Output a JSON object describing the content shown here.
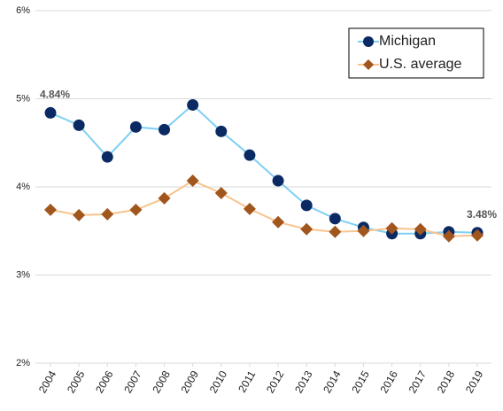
{
  "chart_data": {
    "type": "line",
    "categories": [
      "2004",
      "2005",
      "2006",
      "2007",
      "2008",
      "2009",
      "2010",
      "2011",
      "2012",
      "2013",
      "2014",
      "2015",
      "2016",
      "2017",
      "2018",
      "2019"
    ],
    "series": [
      {
        "name": "Michigan",
        "color": "#0b2a63",
        "line_color": "#7fd0f2",
        "marker": "circle",
        "values": [
          4.84,
          4.7,
          4.34,
          4.68,
          4.65,
          4.93,
          4.63,
          4.36,
          4.07,
          3.79,
          3.64,
          3.54,
          3.47,
          3.47,
          3.49,
          3.48
        ],
        "value_labels": [
          "4.84%",
          null,
          null,
          null,
          null,
          null,
          null,
          null,
          null,
          null,
          null,
          null,
          null,
          null,
          null,
          "3.48%"
        ]
      },
      {
        "name": "U.S. average",
        "color": "#a0561d",
        "line_color": "#f8c48e",
        "marker": "diamond",
        "values": [
          3.74,
          3.68,
          3.69,
          3.74,
          3.87,
          4.07,
          3.93,
          3.75,
          3.6,
          3.52,
          3.49,
          3.5,
          3.53,
          3.52,
          3.44,
          3.45
        ]
      }
    ],
    "ylim": [
      2,
      6
    ],
    "yticks": [
      {
        "value": 2,
        "label": "2%"
      },
      {
        "value": 3,
        "label": "3%"
      },
      {
        "value": 4,
        "label": "4%"
      },
      {
        "value": 5,
        "label": "5%"
      },
      {
        "value": 6,
        "label": "6%"
      }
    ],
    "grid": true,
    "legend": "top-right"
  }
}
